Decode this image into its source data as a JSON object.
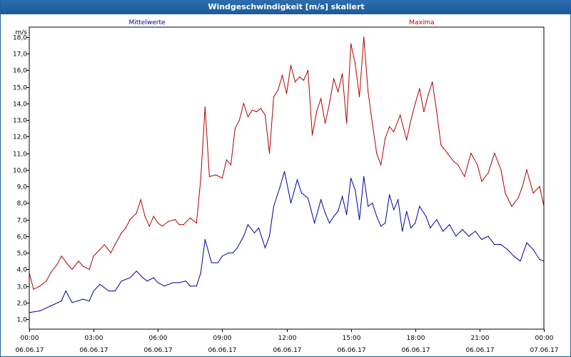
{
  "window": {
    "title": "Windgeschwindigkeit [m/s] skaliert"
  },
  "chart_data": {
    "type": "line",
    "title": "Windgeschwindigkeit [m/s] skaliert",
    "ylabel": "m/s",
    "xlabel": "",
    "ylim": [
      0.4,
      18.6
    ],
    "xlim_hours": [
      0,
      24
    ],
    "x_unit": "hours from 06.06.17 00:00",
    "yticks": [
      "1,0",
      "2,0",
      "3,0",
      "4,0",
      "5,0",
      "6,0",
      "7,0",
      "8,0",
      "9,0",
      "10,0",
      "11,0",
      "12,0",
      "13,0",
      "14,0",
      "15,0",
      "16,0",
      "17,0",
      "18,0"
    ],
    "xticks": [
      {
        "time": "00:00",
        "date": "06.06.17"
      },
      {
        "time": "03:00",
        "date": "06.06.17"
      },
      {
        "time": "06:00",
        "date": "06.06.17"
      },
      {
        "time": "09:00",
        "date": "06.06.17"
      },
      {
        "time": "12:00",
        "date": "06.06.17"
      },
      {
        "time": "15:00",
        "date": "06.06.17"
      },
      {
        "time": "18:00",
        "date": "06.06.17"
      },
      {
        "time": "21:00",
        "date": "06.06.17"
      },
      {
        "time": "00:00",
        "date": "07.06.17"
      }
    ],
    "grid": true,
    "series": [
      {
        "name": "Mittelwerte",
        "color": "#0000a0",
        "points": [
          [
            0.0,
            1.4
          ],
          [
            0.5,
            1.5
          ],
          [
            1.0,
            1.8
          ],
          [
            1.5,
            2.1
          ],
          [
            1.7,
            2.7
          ],
          [
            2.0,
            2.0
          ],
          [
            2.5,
            2.2
          ],
          [
            2.8,
            2.1
          ],
          [
            3.0,
            2.7
          ],
          [
            3.3,
            3.1
          ],
          [
            3.5,
            2.9
          ],
          [
            3.7,
            2.7
          ],
          [
            4.0,
            2.7
          ],
          [
            4.3,
            3.3
          ],
          [
            4.7,
            3.5
          ],
          [
            5.0,
            3.9
          ],
          [
            5.3,
            3.5
          ],
          [
            5.5,
            3.3
          ],
          [
            5.8,
            3.5
          ],
          [
            6.0,
            3.2
          ],
          [
            6.3,
            3.0
          ],
          [
            6.7,
            3.2
          ],
          [
            7.0,
            3.2
          ],
          [
            7.3,
            3.3
          ],
          [
            7.5,
            3.0
          ],
          [
            7.8,
            3.0
          ],
          [
            8.0,
            3.8
          ],
          [
            8.2,
            5.8
          ],
          [
            8.5,
            4.4
          ],
          [
            8.8,
            4.4
          ],
          [
            9.0,
            4.8
          ],
          [
            9.3,
            5.0
          ],
          [
            9.5,
            5.0
          ],
          [
            9.7,
            5.3
          ],
          [
            10.0,
            6.0
          ],
          [
            10.2,
            6.7
          ],
          [
            10.5,
            6.2
          ],
          [
            10.7,
            6.5
          ],
          [
            11.0,
            5.3
          ],
          [
            11.2,
            6.0
          ],
          [
            11.4,
            7.8
          ],
          [
            11.7,
            9.0
          ],
          [
            11.9,
            9.9
          ],
          [
            12.0,
            9.3
          ],
          [
            12.2,
            8.0
          ],
          [
            12.5,
            9.4
          ],
          [
            12.7,
            8.6
          ],
          [
            13.0,
            8.3
          ],
          [
            13.3,
            6.8
          ],
          [
            13.6,
            8.2
          ],
          [
            13.8,
            7.4
          ],
          [
            14.0,
            6.8
          ],
          [
            14.2,
            7.2
          ],
          [
            14.4,
            7.5
          ],
          [
            14.6,
            8.4
          ],
          [
            14.8,
            7.3
          ],
          [
            15.0,
            9.5
          ],
          [
            15.2,
            8.8
          ],
          [
            15.4,
            7.0
          ],
          [
            15.6,
            9.6
          ],
          [
            15.8,
            7.8
          ],
          [
            16.0,
            8.0
          ],
          [
            16.2,
            7.2
          ],
          [
            16.4,
            6.6
          ],
          [
            16.6,
            6.8
          ],
          [
            16.8,
            8.5
          ],
          [
            17.0,
            7.6
          ],
          [
            17.2,
            8.2
          ],
          [
            17.4,
            6.3
          ],
          [
            17.6,
            7.5
          ],
          [
            17.8,
            6.5
          ],
          [
            18.0,
            6.8
          ],
          [
            18.2,
            7.8
          ],
          [
            18.5,
            7.2
          ],
          [
            18.7,
            6.5
          ],
          [
            19.0,
            7.0
          ],
          [
            19.3,
            6.3
          ],
          [
            19.6,
            6.7
          ],
          [
            19.9,
            6.0
          ],
          [
            20.2,
            6.4
          ],
          [
            20.5,
            6.0
          ],
          [
            20.8,
            6.3
          ],
          [
            21.1,
            5.8
          ],
          [
            21.4,
            6.0
          ],
          [
            21.7,
            5.5
          ],
          [
            22.0,
            5.5
          ],
          [
            22.3,
            5.2
          ],
          [
            22.6,
            4.8
          ],
          [
            22.9,
            4.5
          ],
          [
            23.2,
            5.6
          ],
          [
            23.5,
            5.2
          ],
          [
            23.8,
            4.6
          ],
          [
            24.0,
            4.5
          ]
        ]
      },
      {
        "name": "Maxima",
        "color": "#b00000",
        "points": [
          [
            0.0,
            3.8
          ],
          [
            0.2,
            2.8
          ],
          [
            0.5,
            3.0
          ],
          [
            0.8,
            3.3
          ],
          [
            1.0,
            3.8
          ],
          [
            1.3,
            4.3
          ],
          [
            1.5,
            4.8
          ],
          [
            1.8,
            4.3
          ],
          [
            2.0,
            4.0
          ],
          [
            2.3,
            4.5
          ],
          [
            2.5,
            4.2
          ],
          [
            2.8,
            4.0
          ],
          [
            3.0,
            4.8
          ],
          [
            3.3,
            5.2
          ],
          [
            3.5,
            5.5
          ],
          [
            3.8,
            5.0
          ],
          [
            4.0,
            5.5
          ],
          [
            4.3,
            6.2
          ],
          [
            4.5,
            6.5
          ],
          [
            4.7,
            7.0
          ],
          [
            5.0,
            7.4
          ],
          [
            5.2,
            8.2
          ],
          [
            5.4,
            7.2
          ],
          [
            5.6,
            6.6
          ],
          [
            5.8,
            7.2
          ],
          [
            6.0,
            6.8
          ],
          [
            6.2,
            6.6
          ],
          [
            6.5,
            6.9
          ],
          [
            6.8,
            7.0
          ],
          [
            7.0,
            6.7
          ],
          [
            7.2,
            6.7
          ],
          [
            7.5,
            7.1
          ],
          [
            7.8,
            6.8
          ],
          [
            8.0,
            9.5
          ],
          [
            8.2,
            13.8
          ],
          [
            8.4,
            9.6
          ],
          [
            8.7,
            9.7
          ],
          [
            9.0,
            9.5
          ],
          [
            9.2,
            10.6
          ],
          [
            9.4,
            10.3
          ],
          [
            9.6,
            12.5
          ],
          [
            9.8,
            13.0
          ],
          [
            10.0,
            14.0
          ],
          [
            10.2,
            13.2
          ],
          [
            10.4,
            13.6
          ],
          [
            10.6,
            13.5
          ],
          [
            10.8,
            13.7
          ],
          [
            11.0,
            13.3
          ],
          [
            11.2,
            11.0
          ],
          [
            11.4,
            14.4
          ],
          [
            11.6,
            14.8
          ],
          [
            11.8,
            15.7
          ],
          [
            12.0,
            14.6
          ],
          [
            12.2,
            16.3
          ],
          [
            12.4,
            15.3
          ],
          [
            12.6,
            15.6
          ],
          [
            12.8,
            15.4
          ],
          [
            13.0,
            16.0
          ],
          [
            13.2,
            12.1
          ],
          [
            13.4,
            13.5
          ],
          [
            13.6,
            14.3
          ],
          [
            13.8,
            12.8
          ],
          [
            14.0,
            14.0
          ],
          [
            14.2,
            15.5
          ],
          [
            14.4,
            14.7
          ],
          [
            14.6,
            15.8
          ],
          [
            14.8,
            12.8
          ],
          [
            15.0,
            17.6
          ],
          [
            15.2,
            16.4
          ],
          [
            15.4,
            14.4
          ],
          [
            15.6,
            18.0
          ],
          [
            15.8,
            14.7
          ],
          [
            16.0,
            12.8
          ],
          [
            16.2,
            11.0
          ],
          [
            16.4,
            10.3
          ],
          [
            16.6,
            11.9
          ],
          [
            16.8,
            12.6
          ],
          [
            17.0,
            12.3
          ],
          [
            17.3,
            13.3
          ],
          [
            17.6,
            11.8
          ],
          [
            17.8,
            13.0
          ],
          [
            18.0,
            14.0
          ],
          [
            18.2,
            14.9
          ],
          [
            18.4,
            13.5
          ],
          [
            18.6,
            14.5
          ],
          [
            18.8,
            15.3
          ],
          [
            19.0,
            13.5
          ],
          [
            19.2,
            11.5
          ],
          [
            19.5,
            11.0
          ],
          [
            19.8,
            10.5
          ],
          [
            20.0,
            10.3
          ],
          [
            20.3,
            9.6
          ],
          [
            20.6,
            11.0
          ],
          [
            20.9,
            10.3
          ],
          [
            21.1,
            9.3
          ],
          [
            21.4,
            9.8
          ],
          [
            21.7,
            11.0
          ],
          [
            22.0,
            10.0
          ],
          [
            22.2,
            8.6
          ],
          [
            22.5,
            7.8
          ],
          [
            22.8,
            8.3
          ],
          [
            23.0,
            9.0
          ],
          [
            23.2,
            10.0
          ],
          [
            23.5,
            8.6
          ],
          [
            23.8,
            9.0
          ],
          [
            24.0,
            7.8
          ]
        ]
      }
    ]
  }
}
